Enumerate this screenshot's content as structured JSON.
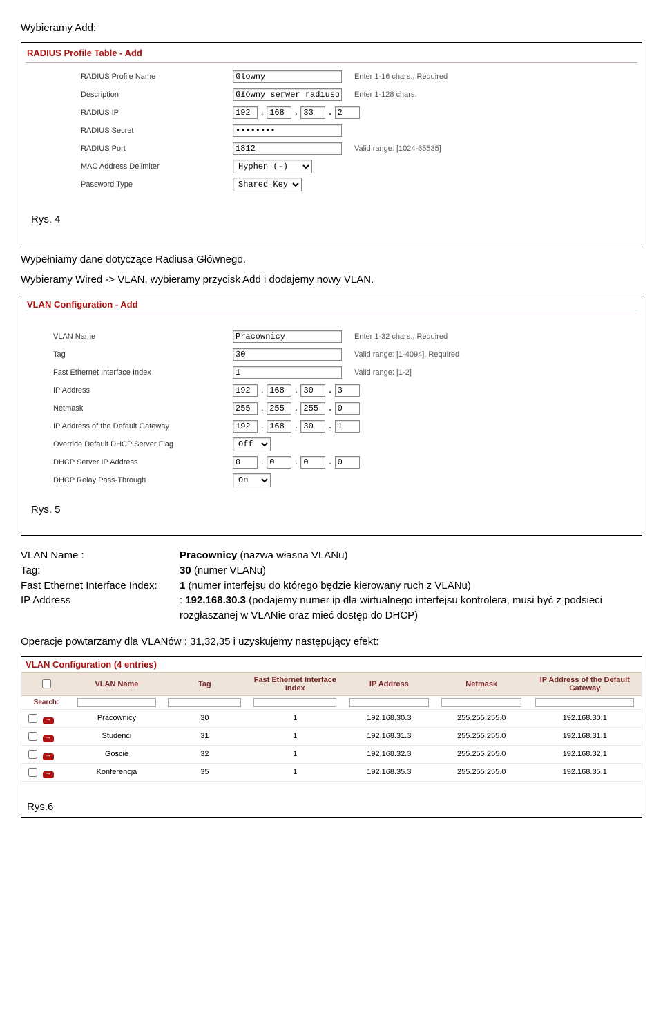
{
  "intro_text": "Wybieramy Add:",
  "radius_panel": {
    "title": "RADIUS Profile Table - Add",
    "rows": {
      "profile_name": {
        "label": "RADIUS Profile Name",
        "value": "Glowny",
        "hint": "Enter 1-16 chars., Required"
      },
      "description": {
        "label": "Description",
        "value": "Główny serwer radiusowy",
        "hint": "Enter 1-128 chars."
      },
      "ip": {
        "label": "RADIUS IP",
        "o1": "192",
        "o2": "168",
        "o3": "33",
        "o4": "2"
      },
      "secret": {
        "label": "RADIUS Secret",
        "value": "••••••••"
      },
      "port": {
        "label": "RADIUS Port",
        "value": "1812",
        "hint": "Valid range: [1024-65535]"
      },
      "delim": {
        "label": "MAC Address Delimiter",
        "value": "Hyphen (-)"
      },
      "pwd": {
        "label": "Password Type",
        "value": "Shared Key"
      }
    }
  },
  "caption_rys4": "Rys. 4",
  "mid_text1": "Wypełniamy dane dotyczące Radiusa Głównego.",
  "mid_text2": "Wybieramy  Wired -> VLAN, wybieramy przycisk Add i dodajemy nowy VLAN.",
  "vlan_panel": {
    "title": "VLAN Configuration - Add",
    "rows": {
      "name": {
        "label": "VLAN Name",
        "value": "Pracownicy",
        "hint": "Enter 1-32 chars., Required"
      },
      "tag": {
        "label": "Tag",
        "value": "30",
        "hint": "Valid range: [1-4094], Required"
      },
      "feidx": {
        "label": "Fast Ethernet Interface Index",
        "value": "1",
        "hint": "Valid range: [1-2]"
      },
      "ip": {
        "label": "IP Address",
        "o1": "192",
        "o2": "168",
        "o3": "30",
        "o4": "3"
      },
      "mask": {
        "label": "Netmask",
        "o1": "255",
        "o2": "255",
        "o3": "255",
        "o4": "0"
      },
      "gw": {
        "label": "IP Address of the Default Gateway",
        "o1": "192",
        "o2": "168",
        "o3": "30",
        "o4": "1"
      },
      "dhcpflg": {
        "label": "Override Default DHCP Server Flag",
        "value": "Off"
      },
      "dhcpip": {
        "label": "DHCP Server IP Address",
        "o1": "0",
        "o2": "0",
        "o3": "0",
        "o4": "0"
      },
      "relay": {
        "label": "DHCP Relay Pass-Through",
        "value": "On"
      }
    }
  },
  "caption_rys5": "Rys. 5",
  "defs": [
    {
      "label": "VLAN Name :",
      "value": "<b>Pracownicy</b> (nazwa własna VLANu)"
    },
    {
      "label": "Tag:",
      "value": "<b>30</b> (numer VLANu)"
    },
    {
      "label": "Fast Ethernet Interface Index:",
      "value": "<b>1</b> (numer interfejsu do którego będzie kierowany ruch z VLANu)"
    },
    {
      "label": "IP Address",
      "value": ": <b>192.168.30.3</b> (podajemy numer ip dla wirtualnego interfejsu kontrolera, musi być z podsieci rozgłaszanej w VLANie oraz mieć dostęp do DHCP)"
    }
  ],
  "repeat_text": "Operacje powtarzamy dla VLANów : 31,32,35 i uzyskujemy następujący efekt:",
  "vlan_table": {
    "title": "VLAN Configuration (4 entries)",
    "columns": [
      "",
      "VLAN Name",
      "Tag",
      "Fast Ethernet Interface Index",
      "IP Address",
      "Netmask",
      "IP Address of the Default Gateway"
    ],
    "search_label": "Search:",
    "rows": [
      [
        "Pracownicy",
        "30",
        "1",
        "192.168.30.3",
        "255.255.255.0",
        "192.168.30.1"
      ],
      [
        "Studenci",
        "31",
        "1",
        "192.168.31.3",
        "255.255.255.0",
        "192.168.31.1"
      ],
      [
        "Goscie",
        "32",
        "1",
        "192.168.32.3",
        "255.255.255.0",
        "192.168.32.1"
      ],
      [
        "Konferencja",
        "35",
        "1",
        "192.168.35.3",
        "255.255.255.0",
        "192.168.35.1"
      ]
    ]
  },
  "caption_rys6": "Rys.6"
}
